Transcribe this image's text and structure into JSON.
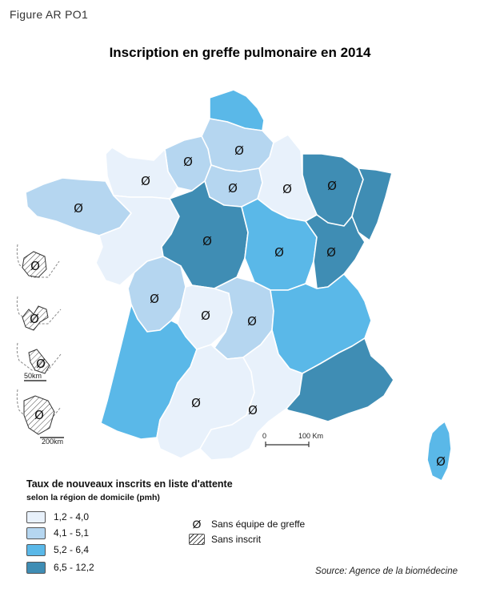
{
  "figure_label": "Figure AR PO1",
  "title": "Inscription en greffe pulmonaire en 2014",
  "legend": {
    "title": "Taux de nouveaux inscrits en liste d'attente",
    "subtitle": "selon la région de domicile (pmh)",
    "classes": [
      {
        "label": "1,2 - 4,0",
        "color": "#e8f1fb"
      },
      {
        "label": "4,1 - 5,1",
        "color": "#b5d6f0"
      },
      {
        "label": "5,2 - 6,4",
        "color": "#5ab8e8"
      },
      {
        "label": "6,5 - 12,2",
        "color": "#3f8db4"
      }
    ],
    "symbols": [
      {
        "glyph": "Ø",
        "label": "Sans équipe de greffe"
      },
      {
        "label": "Sans inscrit"
      }
    ]
  },
  "scale_main": {
    "zero": "0",
    "distance": "100 Km"
  },
  "scale_inset_small": "50km",
  "scale_inset_large": "200km",
  "source": "Source: Agence de la biomédecine",
  "no_transplant_symbol": "Ø"
}
